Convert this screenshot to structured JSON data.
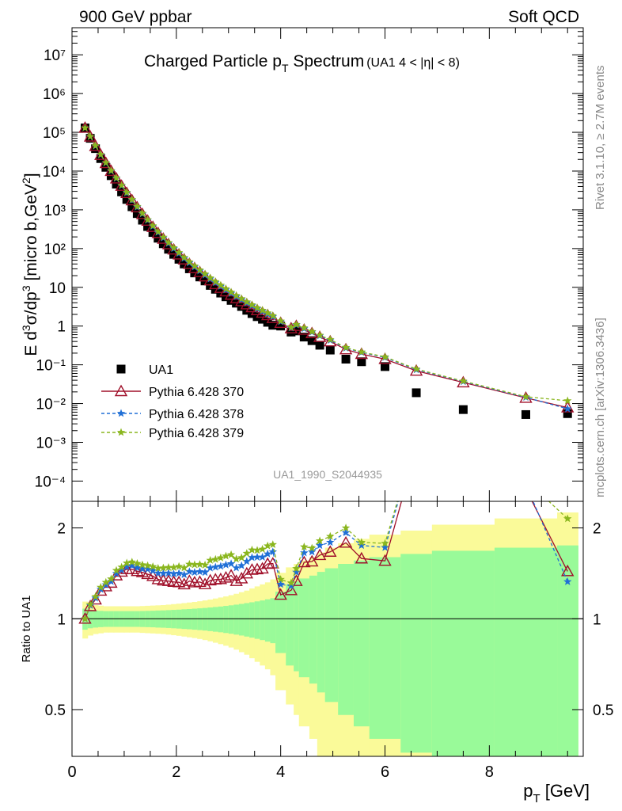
{
  "header": {
    "left": "900 GeV ppbar",
    "right": "Soft QCD"
  },
  "side_labels": {
    "rivet": "Rivet 3.1.10, ≥ 2.7M events",
    "mcplots": "mcplots.cern.ch [arXiv:1306.3436]"
  },
  "chart_data": [
    {
      "type": "scatter",
      "title": "Charged Particle p",
      "title_sub": "T",
      "title_tail": " Spectrum",
      "title_extra": "(UA1   4 < |η| < 8)",
      "analysis_tag": "UA1_1990_S2044935",
      "xlabel": "p",
      "xlabel_sub": "T",
      "xlabel_unit": " [GeV]",
      "ylabel": "E d³σ/dp³ [micro b,GeV²]",
      "yscale": "log",
      "xlim": [
        0,
        9.8
      ],
      "ylim": [
        3e-05,
        50000000.0
      ],
      "ytick_labels": [
        "10⁻⁴",
        "10⁻³",
        "10⁻²",
        "10⁻¹",
        "1",
        "10",
        "10²",
        "10³",
        "10⁴",
        "10⁵",
        "10⁶",
        "10⁷"
      ],
      "ytick_values": [
        0.0001,
        0.001,
        0.01,
        0.1,
        1,
        10,
        100,
        1000,
        10000,
        100000,
        1000000,
        10000000
      ],
      "legend_position": "bottom-left",
      "x": [
        0.25,
        0.35,
        0.45,
        0.55,
        0.65,
        0.75,
        0.85,
        0.95,
        1.05,
        1.15,
        1.25,
        1.35,
        1.45,
        1.55,
        1.65,
        1.75,
        1.85,
        1.95,
        2.05,
        2.15,
        2.25,
        2.35,
        2.45,
        2.55,
        2.65,
        2.75,
        2.85,
        2.95,
        3.05,
        3.15,
        3.25,
        3.35,
        3.45,
        3.55,
        3.65,
        3.75,
        3.85,
        4.0,
        4.2,
        4.3,
        4.45,
        4.6,
        4.75,
        4.95,
        5.25,
        5.55,
        6.0,
        6.6,
        7.5,
        8.7,
        9.5
      ],
      "series": [
        {
          "name": "UA1",
          "marker": "square",
          "color": "#000000",
          "values": [
            130000,
            70000,
            38000,
            21000,
            12500,
            7600,
            4600,
            2900,
            1850,
            1200,
            800,
            540,
            370,
            260,
            185,
            133,
            96,
            71,
            53,
            40,
            30,
            23.5,
            18.5,
            14.6,
            11.2,
            8.9,
            7.1,
            5.7,
            4.6,
            3.9,
            3.2,
            2.55,
            2.1,
            1.75,
            1.5,
            1.25,
            1.05,
            1.0,
            0.7,
            0.75,
            0.52,
            0.42,
            0.32,
            0.24,
            0.14,
            0.12,
            0.09,
            0.019,
            0.007,
            0.0052,
            0.0055
          ]
        },
        {
          "name": "Pythia 6.428 370",
          "marker": "triangle",
          "color": "#a0102a",
          "values": [
            130000,
            77000,
            44000,
            26000,
            16000,
            10000,
            6400,
            4150,
            2700,
            1750,
            1150,
            770,
            520,
            360,
            250,
            178,
            128,
            94,
            70,
            52,
            40,
            31,
            24.5,
            19,
            15,
            12,
            9.6,
            7.8,
            6.4,
            5.2,
            4.35,
            3.6,
            3.05,
            2.55,
            2.2,
            1.9,
            1.6,
            1.2,
            0.87,
            1.0,
            0.8,
            0.65,
            0.52,
            0.4,
            0.25,
            0.19,
            0.14,
            0.07,
            0.035,
            0.014,
            0.0079
          ]
        },
        {
          "name": "Pythia 6.428 378",
          "marker": "star",
          "color": "#1f6fd6",
          "values": [
            130000,
            77500,
            44500,
            26300,
            16200,
            10100,
            6500,
            4200,
            2750,
            1800,
            1180,
            790,
            540,
            375,
            262,
            188,
            136,
            100,
            75,
            56,
            43,
            33.5,
            26.5,
            20.8,
            16.5,
            13.2,
            10.6,
            8.6,
            7.0,
            5.75,
            4.8,
            3.95,
            3.35,
            2.8,
            2.4,
            2.05,
            1.75,
            1.3,
            0.9,
            1.07,
            0.86,
            0.7,
            0.56,
            0.43,
            0.27,
            0.21,
            0.155,
            0.075,
            0.037,
            0.0145,
            0.0073
          ]
        },
        {
          "name": "Pythia 6.428 379",
          "marker": "star",
          "color": "#8ab61e",
          "values": [
            130000,
            78000,
            45000,
            26700,
            16500,
            10300,
            6650,
            4300,
            2830,
            1850,
            1220,
            815,
            555,
            387,
            272,
            196,
            142,
            105,
            79,
            59,
            45.5,
            35.5,
            28,
            22,
            17.5,
            14,
            11.3,
            9.2,
            7.5,
            6.15,
            5.1,
            4.2,
            3.55,
            2.95,
            2.55,
            2.18,
            1.85,
            1.35,
            0.92,
            1.1,
            0.9,
            0.72,
            0.58,
            0.45,
            0.28,
            0.215,
            0.16,
            0.078,
            0.038,
            0.015,
            0.0118
          ]
        }
      ]
    },
    {
      "type": "line",
      "ylabel": "Ratio to UA1",
      "xlim": [
        0,
        9.8
      ],
      "ylim": [
        0.35,
        2.45
      ],
      "ytick_labels": [
        "0.5",
        "1",
        "2"
      ],
      "ytick_values": [
        0.5,
        1,
        2
      ],
      "xtick_labels": [
        "0",
        "2",
        "4",
        "6",
        "8"
      ],
      "xtick_values": [
        0,
        2,
        4,
        6,
        8
      ],
      "band_colors": {
        "inner": "#99fa99",
        "outer": "#fafa99"
      },
      "band_edges": [
        0.2,
        0.3,
        0.4,
        0.5,
        0.6,
        0.7,
        0.8,
        0.9,
        1.0,
        1.1,
        1.2,
        1.3,
        1.4,
        1.5,
        1.6,
        1.7,
        1.8,
        1.9,
        2.0,
        2.1,
        2.2,
        2.3,
        2.4,
        2.5,
        2.6,
        2.7,
        2.8,
        2.9,
        3.0,
        3.1,
        3.2,
        3.3,
        3.4,
        3.5,
        3.6,
        3.7,
        3.8,
        3.9,
        4.1,
        4.25,
        4.35,
        4.55,
        4.7,
        4.85,
        5.1,
        5.4,
        5.7,
        6.3,
        6.9,
        8.1,
        9.3,
        9.7
      ],
      "band_inner": [
        0.08,
        0.07,
        0.065,
        0.062,
        0.06,
        0.06,
        0.06,
        0.06,
        0.06,
        0.06,
        0.06,
        0.061,
        0.062,
        0.063,
        0.065,
        0.066,
        0.068,
        0.07,
        0.072,
        0.075,
        0.077,
        0.08,
        0.083,
        0.086,
        0.09,
        0.094,
        0.098,
        0.103,
        0.108,
        0.114,
        0.12,
        0.127,
        0.134,
        0.142,
        0.15,
        0.16,
        0.17,
        0.23,
        0.3,
        0.33,
        0.36,
        0.39,
        0.43,
        0.47,
        0.52,
        0.56,
        0.6,
        0.64,
        0.68,
        0.72,
        0.75
      ],
      "band_outer": [
        0.14,
        0.12,
        0.11,
        0.105,
        0.1,
        0.1,
        0.1,
        0.1,
        0.1,
        0.1,
        0.1,
        0.102,
        0.104,
        0.106,
        0.108,
        0.11,
        0.114,
        0.118,
        0.122,
        0.127,
        0.132,
        0.137,
        0.143,
        0.15,
        0.158,
        0.167,
        0.176,
        0.186,
        0.197,
        0.21,
        0.225,
        0.24,
        0.26,
        0.28,
        0.3,
        0.32,
        0.35,
        0.42,
        0.48,
        0.52,
        0.56,
        0.6,
        0.66,
        0.72,
        0.78,
        0.84,
        0.9,
        0.96,
        1.05,
        1.15,
        1.25
      ]
    }
  ]
}
